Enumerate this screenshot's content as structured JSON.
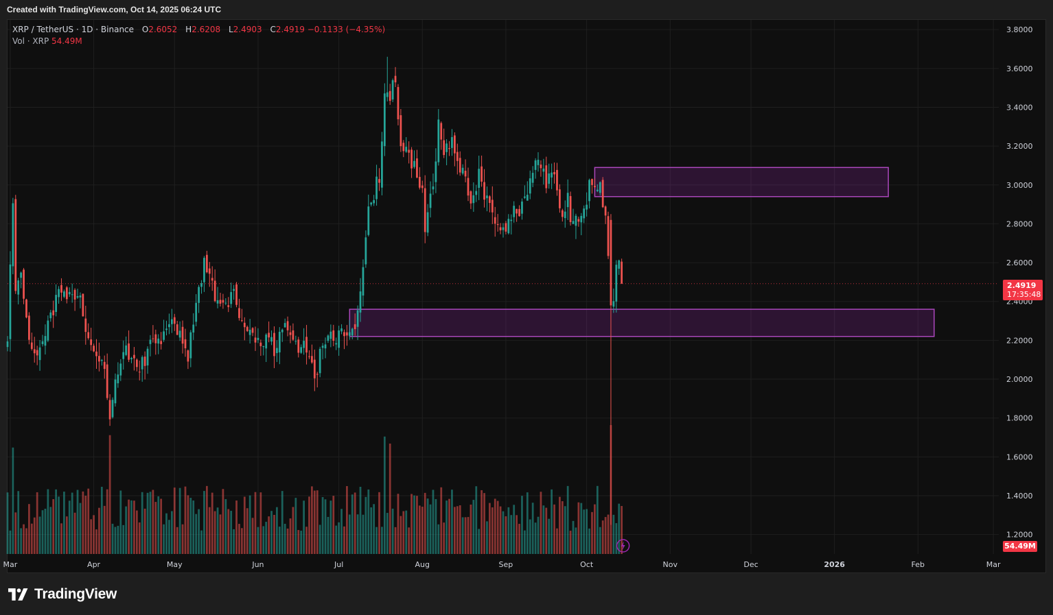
{
  "header": {
    "caption": "Created with TradingView.com, Oct 14, 2025 06:24 UTC"
  },
  "legend": {
    "symbol": "XRP / TetherUS · 1D · Binance",
    "open_label": "O",
    "open": "2.6052",
    "high_label": "H",
    "high": "2.6208",
    "low_label": "L",
    "low": "2.4903",
    "close_label": "C",
    "close": "2.4919",
    "change": "−0.1133 (−4.35%)",
    "vol_label": "Vol · XRP",
    "vol": "54.49M"
  },
  "price_tag": {
    "price": "2.4919",
    "countdown": "17:35:48"
  },
  "vol_tag": "54.49M",
  "footer": {
    "brand": "TradingView"
  },
  "colors": {
    "up": "#26a69a",
    "down": "#ef5350",
    "zone": "#9c27b0",
    "background": "#0f0f0f",
    "grid": "#1f1f1f",
    "last_price": "#f23645"
  },
  "icons": [
    "lightning-icon",
    "tradingview-logo"
  ],
  "chart_data": {
    "type": "candlestick",
    "title": "XRP / TetherUS · 1D · Binance",
    "ylim": [
      1.1,
      3.85
    ],
    "y_ticks": [
      "3.8000",
      "3.6000",
      "3.4000",
      "3.2000",
      "3.0000",
      "2.8000",
      "2.6000",
      "2.4000",
      "2.2000",
      "2.0000",
      "1.8000",
      "1.6000",
      "1.4000",
      "1.2000"
    ],
    "x_start_date": "2025-02-28",
    "x_end_date": "2026-03-03",
    "x_ticks": [
      {
        "label": "Mar",
        "date": "2025-03-01"
      },
      {
        "label": "Apr",
        "date": "2025-04-01"
      },
      {
        "label": "May",
        "date": "2025-05-01"
      },
      {
        "label": "Jun",
        "date": "2025-06-01"
      },
      {
        "label": "Jul",
        "date": "2025-07-01"
      },
      {
        "label": "Aug",
        "date": "2025-08-01"
      },
      {
        "label": "Sep",
        "date": "2025-09-01"
      },
      {
        "label": "Oct",
        "date": "2025-10-01"
      },
      {
        "label": "Nov",
        "date": "2025-11-01"
      },
      {
        "label": "Dec",
        "date": "2025-12-01"
      },
      {
        "label": "2026",
        "date": "2026-01-01"
      },
      {
        "label": "Feb",
        "date": "2026-02-01"
      },
      {
        "label": "Mar",
        "date": "2026-03-01"
      }
    ],
    "last_price": 2.4919,
    "zones": [
      {
        "from": "2025-10-04",
        "to": "2026-01-21",
        "top": 3.09,
        "bottom": 2.94
      },
      {
        "from": "2025-07-05",
        "to": "2026-02-07",
        "top": 2.36,
        "bottom": 2.22
      }
    ],
    "closes": [
      {
        "date": "2025-02-28",
        "close": 2.18
      },
      {
        "date": "2025-03-02",
        "close": 2.95
      },
      {
        "date": "2025-03-03",
        "close": 2.42
      },
      {
        "date": "2025-03-05",
        "close": 2.52
      },
      {
        "date": "2025-03-07",
        "close": 2.3
      },
      {
        "date": "2025-03-10",
        "close": 2.1
      },
      {
        "date": "2025-03-13",
        "close": 2.22
      },
      {
        "date": "2025-03-17",
        "close": 2.33
      },
      {
        "date": "2025-03-19",
        "close": 2.48
      },
      {
        "date": "2025-03-22",
        "close": 2.42
      },
      {
        "date": "2025-03-26",
        "close": 2.46
      },
      {
        "date": "2025-03-28",
        "close": 2.35
      },
      {
        "date": "2025-04-01",
        "close": 2.1
      },
      {
        "date": "2025-04-04",
        "close": 2.12
      },
      {
        "date": "2025-04-06",
        "close": 1.92
      },
      {
        "date": "2025-04-07",
        "close": 1.8
      },
      {
        "date": "2025-04-09",
        "close": 2.02
      },
      {
        "date": "2025-04-12",
        "close": 2.15
      },
      {
        "date": "2025-04-16",
        "close": 2.08
      },
      {
        "date": "2025-04-20",
        "close": 2.08
      },
      {
        "date": "2025-04-23",
        "close": 2.22
      },
      {
        "date": "2025-04-26",
        "close": 2.22
      },
      {
        "date": "2025-04-29",
        "close": 2.32
      },
      {
        "date": "2025-05-03",
        "close": 2.22
      },
      {
        "date": "2025-05-06",
        "close": 2.12
      },
      {
        "date": "2025-05-09",
        "close": 2.38
      },
      {
        "date": "2025-05-12",
        "close": 2.58
      },
      {
        "date": "2025-05-14",
        "close": 2.55
      },
      {
        "date": "2025-05-16",
        "close": 2.38
      },
      {
        "date": "2025-05-20",
        "close": 2.4
      },
      {
        "date": "2025-05-23",
        "close": 2.42
      },
      {
        "date": "2025-05-26",
        "close": 2.32
      },
      {
        "date": "2025-05-30",
        "close": 2.25
      },
      {
        "date": "2025-06-02",
        "close": 2.18
      },
      {
        "date": "2025-06-05",
        "close": 2.22
      },
      {
        "date": "2025-06-07",
        "close": 2.15
      },
      {
        "date": "2025-06-10",
        "close": 2.28
      },
      {
        "date": "2025-06-13",
        "close": 2.2
      },
      {
        "date": "2025-06-16",
        "close": 2.18
      },
      {
        "date": "2025-06-19",
        "close": 2.15
      },
      {
        "date": "2025-06-22",
        "close": 2.0
      },
      {
        "date": "2025-06-25",
        "close": 2.18
      },
      {
        "date": "2025-06-28",
        "close": 2.22
      },
      {
        "date": "2025-07-02",
        "close": 2.24
      },
      {
        "date": "2025-07-06",
        "close": 2.25
      },
      {
        "date": "2025-07-08",
        "close": 2.35
      },
      {
        "date": "2025-07-10",
        "close": 2.55
      },
      {
        "date": "2025-07-12",
        "close": 2.85
      },
      {
        "date": "2025-07-14",
        "close": 2.95
      },
      {
        "date": "2025-07-16",
        "close": 3.05
      },
      {
        "date": "2025-07-18",
        "close": 3.48
      },
      {
        "date": "2025-07-20",
        "close": 3.45
      },
      {
        "date": "2025-07-22",
        "close": 3.55
      },
      {
        "date": "2025-07-24",
        "close": 3.18
      },
      {
        "date": "2025-07-27",
        "close": 3.18
      },
      {
        "date": "2025-07-29",
        "close": 3.08
      },
      {
        "date": "2025-07-31",
        "close": 3.0
      },
      {
        "date": "2025-08-01",
        "close": 2.98
      },
      {
        "date": "2025-08-02",
        "close": 2.78
      },
      {
        "date": "2025-08-05",
        "close": 3.0
      },
      {
        "date": "2025-08-07",
        "close": 3.32
      },
      {
        "date": "2025-08-09",
        "close": 3.18
      },
      {
        "date": "2025-08-12",
        "close": 3.22
      },
      {
        "date": "2025-08-14",
        "close": 3.08
      },
      {
        "date": "2025-08-16",
        "close": 3.08
      },
      {
        "date": "2025-08-18",
        "close": 2.95
      },
      {
        "date": "2025-08-20",
        "close": 2.92
      },
      {
        "date": "2025-08-22",
        "close": 3.05
      },
      {
        "date": "2025-08-24",
        "close": 2.95
      },
      {
        "date": "2025-08-27",
        "close": 2.85
      },
      {
        "date": "2025-08-29",
        "close": 2.8
      },
      {
        "date": "2025-09-01",
        "close": 2.78
      },
      {
        "date": "2025-09-03",
        "close": 2.85
      },
      {
        "date": "2025-09-06",
        "close": 2.85
      },
      {
        "date": "2025-09-08",
        "close": 2.95
      },
      {
        "date": "2025-09-10",
        "close": 3.02
      },
      {
        "date": "2025-09-12",
        "close": 3.1
      },
      {
        "date": "2025-09-14",
        "close": 3.08
      },
      {
        "date": "2025-09-16",
        "close": 3.02
      },
      {
        "date": "2025-09-18",
        "close": 3.05
      },
      {
        "date": "2025-09-20",
        "close": 2.98
      },
      {
        "date": "2025-09-22",
        "close": 2.85
      },
      {
        "date": "2025-09-24",
        "close": 2.92
      },
      {
        "date": "2025-09-25",
        "close": 2.78
      },
      {
        "date": "2025-09-27",
        "close": 2.8
      },
      {
        "date": "2025-09-29",
        "close": 2.85
      },
      {
        "date": "2025-10-01",
        "close": 2.92
      },
      {
        "date": "2025-10-02",
        "close": 3.02
      },
      {
        "date": "2025-10-04",
        "close": 2.98
      },
      {
        "date": "2025-10-06",
        "close": 3.0
      },
      {
        "date": "2025-10-08",
        "close": 2.82
      },
      {
        "date": "2025-10-10",
        "close": 2.38
      },
      {
        "date": "2025-10-11",
        "close": 2.38
      },
      {
        "date": "2025-10-12",
        "close": 2.55
      },
      {
        "date": "2025-10-13",
        "close": 2.6
      },
      {
        "date": "2025-10-14",
        "close": 2.4919
      }
    ],
    "anchors_ohlc": [
      {
        "date": "2025-07-19",
        "high": 3.66
      },
      {
        "date": "2025-10-10",
        "open": 2.82,
        "high": 2.85,
        "low": 1.25,
        "close": 2.38
      },
      {
        "date": "2025-10-14",
        "open": 2.6052,
        "high": 2.6208,
        "low": 2.4903,
        "close": 2.4919
      }
    ],
    "volume": {
      "label": "Vol · XRP",
      "last": "54.49M",
      "max_bar_date": "2025-10-10",
      "notable_spikes": [
        "2025-03-02",
        "2025-04-07",
        "2025-07-18",
        "2025-07-20",
        "2025-10-10"
      ]
    }
  }
}
